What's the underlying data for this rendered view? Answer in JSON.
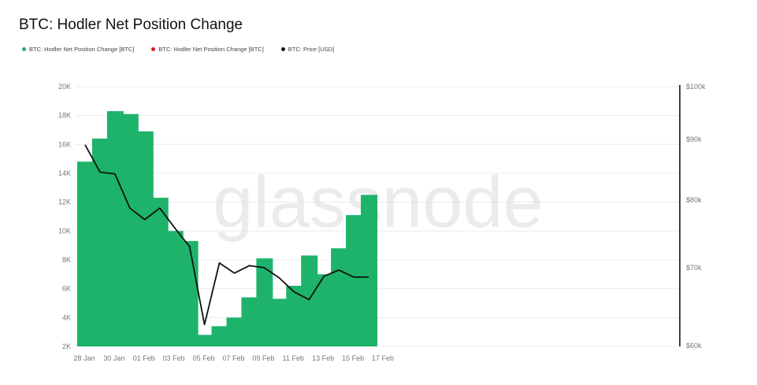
{
  "title": "BTC: Hodler Net Position Change",
  "watermark": "glassnode",
  "legend": [
    {
      "label": "BTC: Hodler Net Position Change [BTC]",
      "color": "#1db36a"
    },
    {
      "label": "BTC: Hodler Net Position Change [BTC]",
      "color": "#e0141e"
    },
    {
      "label": "BTC: Price [USD]",
      "color": "#111111"
    }
  ],
  "chart_data": {
    "type": "bar",
    "x_ticks": [
      "28 Jan",
      "30 Jan",
      "01 Feb",
      "03 Feb",
      "05 Feb",
      "07 Feb",
      "09 Feb",
      "11 Feb",
      "13 Feb",
      "15 Feb",
      "17 Feb"
    ],
    "y_ticks": [
      "2K",
      "4K",
      "6K",
      "8K",
      "10K",
      "12K",
      "14K",
      "16K",
      "18K",
      "20K"
    ],
    "y2_ticks": [
      "$60k",
      "$70k",
      "$80k",
      "$90k",
      "$100k"
    ],
    "ylim": [
      2000,
      20000
    ],
    "y2_ticks_values": [
      60000,
      70000,
      80000,
      90000,
      100000
    ],
    "grid": true,
    "series": [
      {
        "name": "BTC: Hodler Net Position Change [BTC]",
        "type": "bar",
        "color": "#1db36a",
        "dates": [
          "2026-01-28",
          "2026-01-29",
          "2026-01-30",
          "2026-01-31",
          "2026-02-01",
          "2026-02-02",
          "2026-02-03",
          "2026-02-04",
          "2026-02-05",
          "2026-02-06",
          "2026-02-07",
          "2026-02-08",
          "2026-02-09",
          "2026-02-10",
          "2026-02-11",
          "2026-02-12",
          "2026-02-13",
          "2026-02-14",
          "2026-02-15",
          "2026-02-16"
        ],
        "values": [
          14800,
          16400,
          18300,
          18100,
          16900,
          12300,
          10000,
          9300,
          2800,
          3400,
          4000,
          5400,
          8100,
          5300,
          6200,
          8300,
          7000,
          8800,
          11100,
          12500
        ]
      },
      {
        "name": "BTC: Price [USD]",
        "type": "line",
        "axis": "right",
        "color": "#111111",
        "dates": [
          "2026-01-28",
          "2026-01-29",
          "2026-01-30",
          "2026-01-31",
          "2026-02-01",
          "2026-02-02",
          "2026-02-03",
          "2026-02-04",
          "2026-02-05",
          "2026-02-06",
          "2026-02-07",
          "2026-02-08",
          "2026-02-09",
          "2026-02-10",
          "2026-02-11",
          "2026-02-12",
          "2026-02-13",
          "2026-02-14",
          "2026-02-15",
          "2026-02-16"
        ],
        "values": [
          89100,
          84600,
          84300,
          78800,
          77100,
          78800,
          75900,
          73100,
          62700,
          70700,
          69300,
          70300,
          70000,
          68700,
          66900,
          65900,
          68900,
          69700,
          68800,
          68800
        ]
      }
    ]
  }
}
